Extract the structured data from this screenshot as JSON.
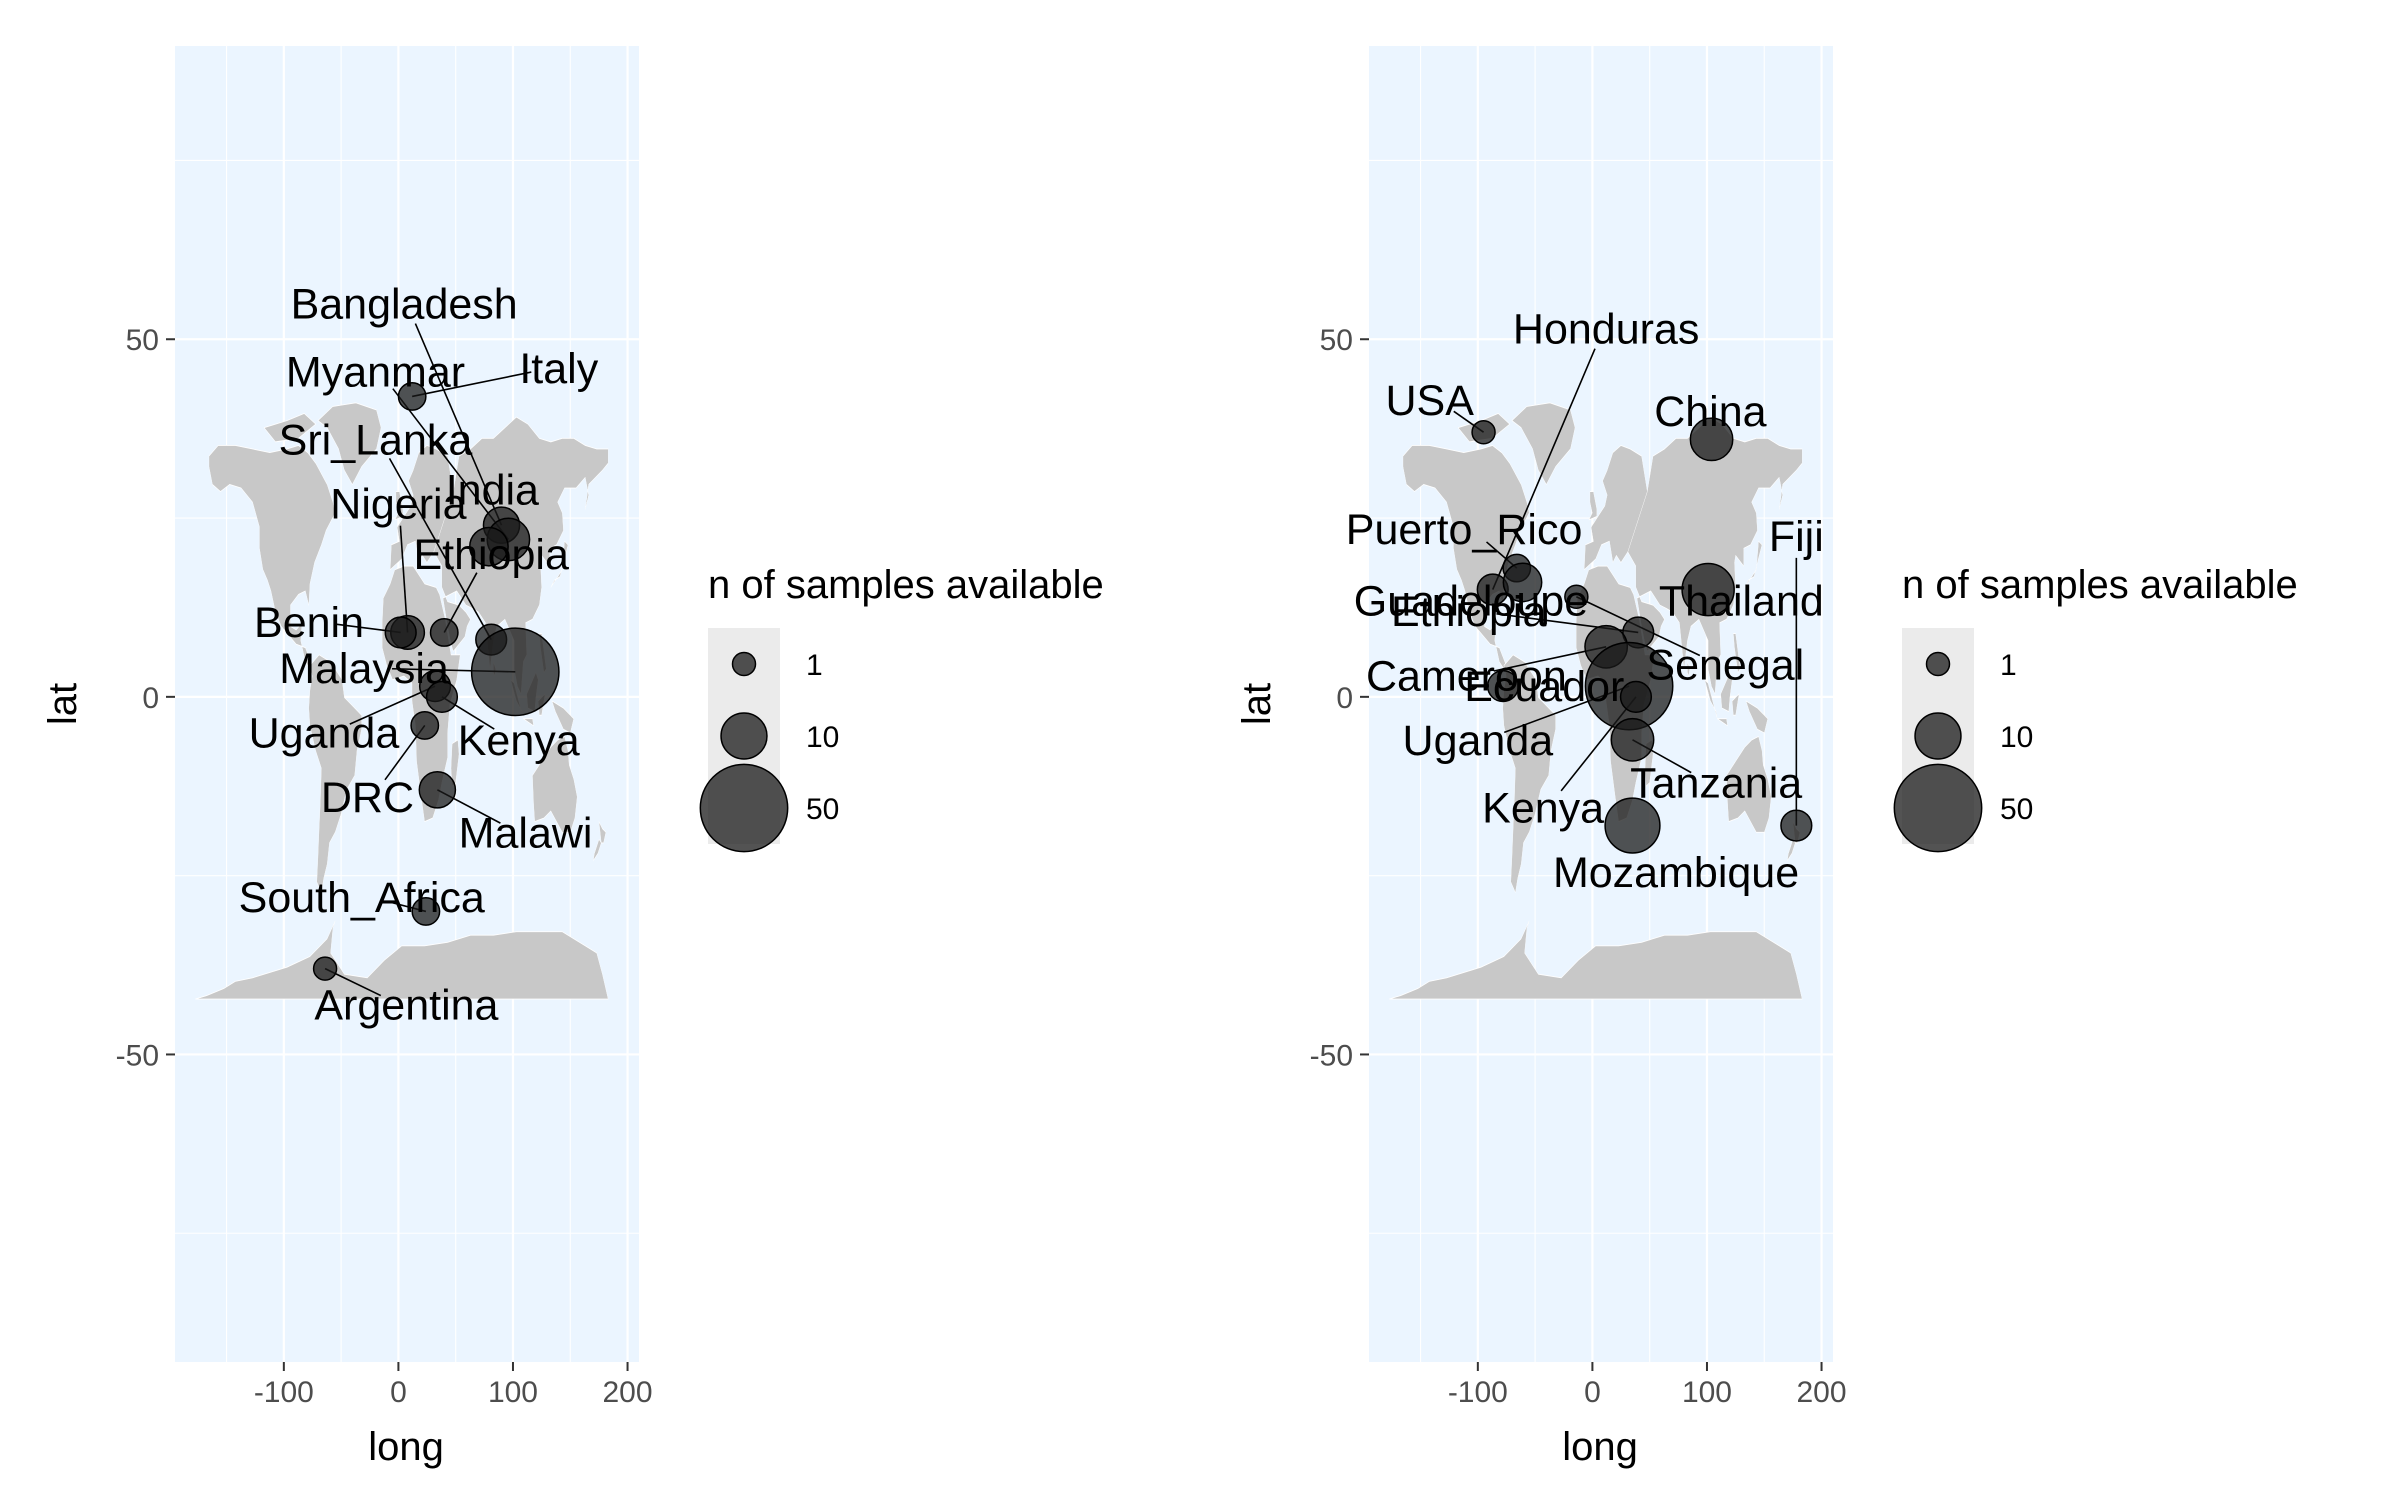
{
  "colors": {
    "panel_bg": "#ebf5ff",
    "grid": "#ffffff",
    "land": "#c8c8c8",
    "point": "#1a1a1a",
    "legend_key_bg": "#ebebeb",
    "text": "#000000",
    "tick": "#4d4d4d"
  },
  "chart_data": [
    {
      "type": "scatter",
      "title": "",
      "xlabel": "long",
      "ylabel": "lat",
      "xlim": [
        -195,
        210
      ],
      "ylim": [
        -93,
        91
      ],
      "xticks": [
        -100,
        0,
        100,
        200
      ],
      "yticks": [
        -50,
        0,
        50
      ],
      "xtick_labels": [
        "-100",
        "0",
        "100",
        "200"
      ],
      "ytick_labels": [
        "-50",
        "0",
        "50"
      ],
      "grid": true,
      "legend": {
        "title": "n of samples available",
        "position": "right",
        "entries": [
          {
            "label": "1",
            "size": 1
          },
          {
            "label": "10",
            "size": 10
          },
          {
            "label": "50",
            "size": 50
          }
        ]
      },
      "points": [
        {
          "label": "Bangladesh",
          "long": 90,
          "lat": 24,
          "size": 5,
          "label_long": 5,
          "label_lat": 55
        },
        {
          "label": "Myanmar",
          "long": 96,
          "lat": 22,
          "size": 8,
          "label_long": -20,
          "label_lat": 45.5
        },
        {
          "label": "Italy",
          "long": 12,
          "lat": 42,
          "size": 2,
          "label_long": 140,
          "label_lat": 46
        },
        {
          "label": "Sri_Lanka",
          "long": 81,
          "lat": 8,
          "size": 3,
          "label_long": -20,
          "label_lat": 36
        },
        {
          "label": "India",
          "long": 79,
          "lat": 21,
          "size": 6,
          "label_long": 82,
          "label_lat": 29
        },
        {
          "label": "Nigeria",
          "long": 8,
          "lat": 9,
          "size": 4,
          "label_long": 0,
          "label_lat": 27
        },
        {
          "label": "Ethiopia",
          "long": 40,
          "lat": 9,
          "size": 2,
          "label_long": 81,
          "label_lat": 20
        },
        {
          "label": "Benin",
          "long": 2,
          "lat": 9,
          "size": 3,
          "label_long": -78,
          "label_lat": 10.5
        },
        {
          "label": "Malaysia",
          "long": 102,
          "lat": 3.5,
          "size": 50,
          "label_long": -30,
          "label_lat": 4
        },
        {
          "label": "Uganda",
          "long": 32,
          "lat": 1.5,
          "size": 3,
          "label_long": -65,
          "label_lat": -5
        },
        {
          "label": "Kenya",
          "long": 38,
          "lat": 0,
          "size": 3,
          "label_long": 105,
          "label_lat": -6
        },
        {
          "label": "DRC",
          "long": 23,
          "lat": -4,
          "size": 2,
          "label_long": -27,
          "label_lat": -14
        },
        {
          "label": "Malawi",
          "long": 34,
          "lat": -13,
          "size": 5,
          "label_long": 111,
          "label_lat": -19
        },
        {
          "label": "South_Africa",
          "long": 24,
          "lat": -30,
          "size": 2,
          "label_long": -32,
          "label_lat": -28
        },
        {
          "label": "Argentina",
          "long": -64,
          "lat": -38,
          "size": 1,
          "label_long": 7,
          "label_lat": -43
        }
      ]
    },
    {
      "type": "scatter",
      "title": "",
      "xlabel": "long",
      "ylabel": "lat",
      "xlim": [
        -195,
        210
      ],
      "ylim": [
        -93,
        91
      ],
      "xticks": [
        -100,
        0,
        100,
        200
      ],
      "yticks": [
        -50,
        0,
        50
      ],
      "xtick_labels": [
        "-100",
        "0",
        "100",
        "200"
      ],
      "ytick_labels": [
        "-50",
        "0",
        "50"
      ],
      "grid": true,
      "legend": {
        "title": "n of samples available",
        "position": "right",
        "entries": [
          {
            "label": "1",
            "size": 1
          },
          {
            "label": "10",
            "size": 10
          },
          {
            "label": "50",
            "size": 50
          }
        ]
      },
      "points": [
        {
          "label": "Honduras",
          "long": -87,
          "lat": 15,
          "size": 3,
          "label_long": 12,
          "label_lat": 51.5
        },
        {
          "label": "USA",
          "long": -95,
          "lat": 37,
          "size": 1,
          "label_long": -142,
          "label_lat": 41.5
        },
        {
          "label": "China",
          "long": 104,
          "lat": 36,
          "size": 8,
          "label_long": 103,
          "label_lat": 40
        },
        {
          "label": "Puerto_Rico",
          "long": -66,
          "lat": 18,
          "size": 2,
          "label_long": -112,
          "label_lat": 23.5
        },
        {
          "label": "Fiji",
          "long": 178,
          "lat": -18,
          "size": 3,
          "label_long": 178,
          "label_lat": 22.5
        },
        {
          "label": "Guadeloupe",
          "long": -61,
          "lat": 16,
          "size": 6,
          "label_long": -106,
          "label_lat": 13.5
        },
        {
          "label": "Thailand",
          "long": 101,
          "lat": 15,
          "size": 14,
          "label_long": 130,
          "label_lat": 13.5
        },
        {
          "label": "Ethiopia",
          "long": 40,
          "lat": 9,
          "size": 3,
          "label_long": -108,
          "label_lat": 12
        },
        {
          "label": "Senegal",
          "long": -14,
          "lat": 14,
          "size": 1,
          "label_long": 116,
          "label_lat": 4.5
        },
        {
          "label": "Cameroon",
          "long": 12,
          "lat": 7,
          "size": 8,
          "label_long": -110,
          "label_lat": 3
        },
        {
          "label": "Ecuador",
          "long": -78,
          "lat": 1.5,
          "size": 3,
          "label_long": -42,
          "label_lat": 1.5
        },
        {
          "label": "Uganda",
          "long": 32,
          "lat": 1.5,
          "size": 50,
          "label_long": -100,
          "label_lat": -6
        },
        {
          "label": "Tanzania",
          "long": 35,
          "lat": -6,
          "size": 8,
          "label_long": 108,
          "label_lat": -12
        },
        {
          "label": "Kenya",
          "long": 38,
          "lat": 0,
          "size": 3,
          "label_long": -43,
          "label_lat": -15.5
        },
        {
          "label": "Mozambique",
          "long": 35,
          "lat": -18,
          "size": 16,
          "label_long": 73,
          "label_lat": -24.5
        }
      ]
    }
  ]
}
